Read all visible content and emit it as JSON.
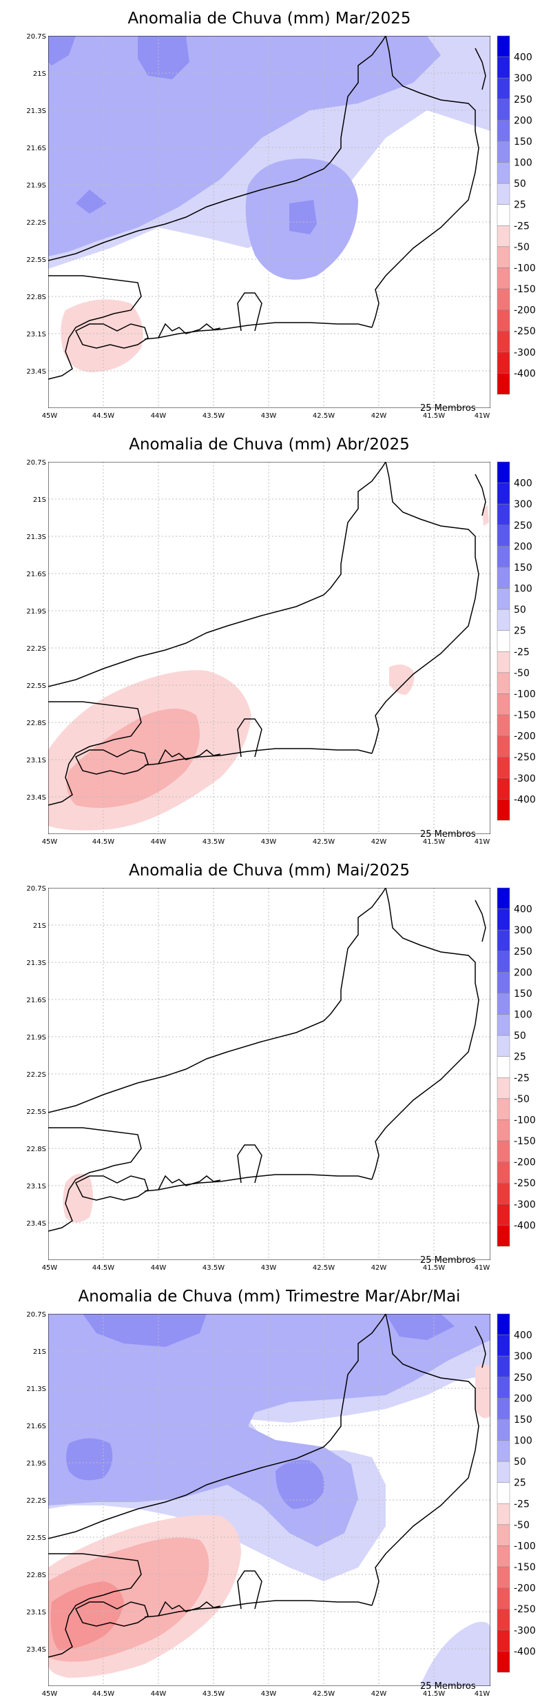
{
  "figure": {
    "members_label": "25 Membros",
    "lat_labels": [
      "20.7S",
      "21S",
      "21.3S",
      "21.6S",
      "21.9S",
      "22.2S",
      "22.5S",
      "22.8S",
      "23.1S",
      "23.4S"
    ],
    "lon_labels": [
      "45W",
      "44.5W",
      "44W",
      "43.5W",
      "43W",
      "42.5W",
      "42W",
      "41.5W",
      "41W"
    ],
    "colorbar": {
      "labels": [
        "400",
        "300",
        "250",
        "200",
        "150",
        "100",
        "50",
        "25",
        "-25",
        "-50",
        "-100",
        "-150",
        "-200",
        "-250",
        "-300",
        "-400"
      ],
      "colors": [
        "#0000e0",
        "#1e1ee6",
        "#3b3beb",
        "#5a5aef",
        "#7676f2",
        "#9292f5",
        "#b0b0f8",
        "#d6d6fb",
        "#ffffff",
        "#fbd6d6",
        "#f8b3b3",
        "#f59595",
        "#f27878",
        "#ef5a5a",
        "#eb3b3b",
        "#e61e1e",
        "#e00000"
      ]
    }
  },
  "panels": [
    {
      "title": "Anomalia de Chuva (mm) Mar/2025"
    },
    {
      "title": "Anomalia de Chuva (mm) Abr/2025"
    },
    {
      "title": "Anomalia de Chuva (mm) Mai/2025"
    },
    {
      "title": "Anomalia de Chuva (mm) Trimestre Mar/Abr/Mai"
    }
  ]
}
